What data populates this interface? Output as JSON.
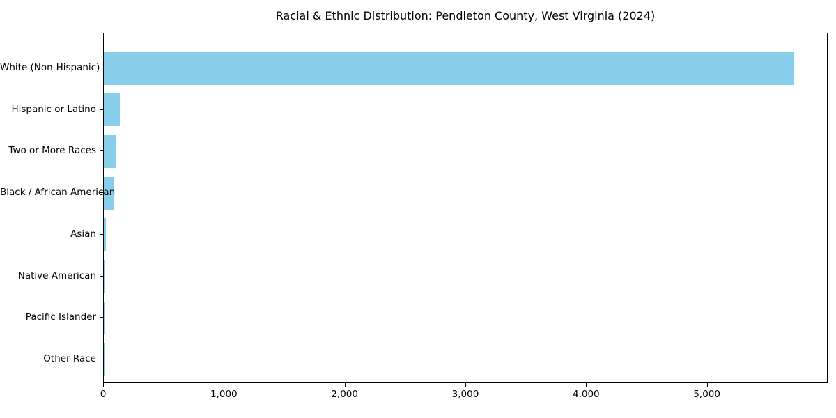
{
  "chart_data": {
    "type": "bar",
    "orientation": "horizontal",
    "title": "Racial & Ethnic Distribution: Pendleton County, West Virginia (2024)",
    "categories": [
      "White (Non-Hispanic)",
      "Hispanic or Latino",
      "Two or More Races",
      "Black / African American",
      "Asian",
      "Native American",
      "Pacific Islander",
      "Other Race"
    ],
    "values": [
      5710,
      135,
      100,
      85,
      18,
      5,
      2,
      2
    ],
    "xlabel": "",
    "ylabel": "",
    "xlim": [
      0,
      6000
    ],
    "x_ticks": [
      0,
      1000,
      2000,
      3000,
      4000,
      5000
    ],
    "x_tick_labels": [
      "0",
      "1,000",
      "2,000",
      "3,000",
      "4,000",
      "5,000"
    ],
    "bar_color": "#87CEEB",
    "text_color": "#000000",
    "background_color": "#FFFFFF",
    "grid": false
  }
}
